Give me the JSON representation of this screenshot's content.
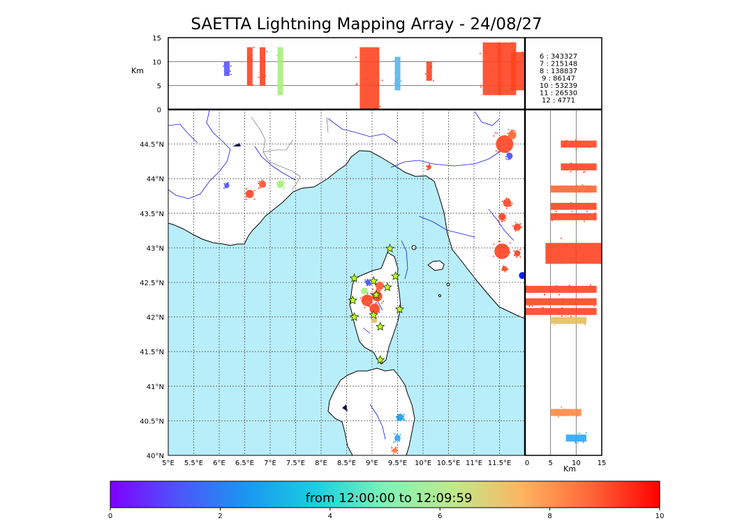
{
  "title": "SAETTA Lightning Mapping Array - 24/08/27",
  "alt_panel": {
    "unit_label": "Km",
    "y_ticks": [
      "15",
      "10",
      "5",
      "0"
    ],
    "y_values": [
      15,
      10,
      5,
      0
    ]
  },
  "side_panel": {
    "unit_label": "Km",
    "x_ticks": [
      "0",
      "5",
      "10",
      "15"
    ],
    "x_values": [
      0,
      5,
      10,
      15
    ]
  },
  "map": {
    "lon_range": [
      5,
      12
    ],
    "lat_range": [
      40,
      45
    ],
    "lon_ticks": [
      "5°E",
      "5.5°E",
      "6°E",
      "6.5°E",
      "7°E",
      "7.5°E",
      "8°E",
      "8.5°E",
      "9°E",
      "9.5°E",
      "10°E",
      "10.5°E",
      "11°E",
      "11.5°E"
    ],
    "lon_values": [
      5,
      5.5,
      6,
      6.5,
      7,
      7.5,
      8,
      8.5,
      9,
      9.5,
      10,
      10.5,
      11,
      11.5
    ],
    "lat_ticks": [
      "44.5°N",
      "44°N",
      "43.5°N",
      "43°N",
      "42.5°N",
      "42°N",
      "41.5°N",
      "41°N",
      "40.5°N",
      "40°N"
    ],
    "lat_values": [
      44.5,
      44,
      43.5,
      43,
      42.5,
      42,
      41.5,
      41,
      40.5,
      40
    ],
    "stations": [
      {
        "lon": 9.35,
        "lat": 42.99
      },
      {
        "lon": 8.65,
        "lat": 42.56
      },
      {
        "lon": 9.03,
        "lat": 42.52
      },
      {
        "lon": 9.46,
        "lat": 42.59
      },
      {
        "lon": 9.3,
        "lat": 42.43
      },
      {
        "lon": 9.08,
        "lat": 42.32
      },
      {
        "lon": 8.62,
        "lat": 42.24
      },
      {
        "lon": 9.54,
        "lat": 42.11
      },
      {
        "lon": 8.65,
        "lat": 42.0
      },
      {
        "lon": 9.03,
        "lat": 42.03
      },
      {
        "lon": 9.16,
        "lat": 41.86
      },
      {
        "lon": 9.16,
        "lat": 41.38
      }
    ],
    "cells": [
      {
        "lon": 6.15,
        "lat": 43.9,
        "r": 0.05,
        "color": "#5b57ff"
      },
      {
        "lon": 6.6,
        "lat": 43.78,
        "r": 0.08,
        "color": "#ff4422"
      },
      {
        "lon": 6.85,
        "lat": 43.92,
        "r": 0.07,
        "color": "#ff5533"
      },
      {
        "lon": 7.2,
        "lat": 43.92,
        "r": 0.07,
        "color": "#a6ef7a"
      },
      {
        "lon": 10.12,
        "lat": 44.17,
        "r": 0.04,
        "color": "#ff4422"
      },
      {
        "lon": 11.6,
        "lat": 44.5,
        "r": 0.17,
        "color": "#ff4422"
      },
      {
        "lon": 11.75,
        "lat": 44.63,
        "r": 0.08,
        "color": "#ff6633"
      },
      {
        "lon": 11.7,
        "lat": 44.33,
        "r": 0.06,
        "color": "#4a50ff"
      },
      {
        "lon": 11.55,
        "lat": 43.45,
        "r": 0.07,
        "color": "#ff4422"
      },
      {
        "lon": 11.65,
        "lat": 43.65,
        "r": 0.08,
        "color": "#ff4422"
      },
      {
        "lon": 11.85,
        "lat": 43.3,
        "r": 0.07,
        "color": "#ff4422"
      },
      {
        "lon": 11.55,
        "lat": 42.95,
        "r": 0.15,
        "color": "#ff4422"
      },
      {
        "lon": 11.85,
        "lat": 42.92,
        "r": 0.06,
        "color": "#ff4422"
      },
      {
        "lon": 11.6,
        "lat": 42.7,
        "r": 0.05,
        "color": "#ff4422"
      },
      {
        "lon": 8.92,
        "lat": 42.5,
        "r": 0.05,
        "color": "#4a50ff"
      },
      {
        "lon": 8.9,
        "lat": 42.24,
        "r": 0.11,
        "color": "#ff4422"
      },
      {
        "lon": 9.1,
        "lat": 42.3,
        "r": 0.1,
        "color": "#ff4422"
      },
      {
        "lon": 9.05,
        "lat": 42.12,
        "r": 0.1,
        "color": "#ff4422"
      },
      {
        "lon": 9.15,
        "lat": 42.45,
        "r": 0.08,
        "color": "#ff5533"
      },
      {
        "lon": 8.85,
        "lat": 42.38,
        "r": 0.06,
        "color": "#a6ef7a"
      },
      {
        "lon": 9.05,
        "lat": 41.95,
        "r": 0.05,
        "color": "#e6c060"
      },
      {
        "lon": 9.55,
        "lat": 40.55,
        "r": 0.07,
        "color": "#1a9fe8"
      },
      {
        "lon": 9.5,
        "lat": 40.25,
        "r": 0.06,
        "color": "#2ca5ff"
      },
      {
        "lon": 9.45,
        "lat": 40.07,
        "r": 0.05,
        "color": "#ff7744"
      }
    ],
    "flash_marker": {
      "lon": 11.95,
      "lat": 42.6,
      "color": "#0a20ff"
    }
  },
  "alt_cells": [
    {
      "lon": 6.15,
      "zlo": 7,
      "zhi": 10,
      "color": "#5b57ff"
    },
    {
      "lon": 6.6,
      "zlo": 5,
      "zhi": 13,
      "color": "#ff4422"
    },
    {
      "lon": 6.85,
      "zlo": 5,
      "zhi": 13,
      "color": "#ff4422"
    },
    {
      "lon": 7.2,
      "zlo": 3,
      "zhi": 13,
      "color": "#a6ef7a"
    },
    {
      "lon": 8.95,
      "zlo": 0,
      "zhi": 13,
      "color": "#ff4422"
    },
    {
      "lon": 9.5,
      "zlo": 4,
      "zhi": 11,
      "color": "#55b5ee"
    },
    {
      "lon": 10.12,
      "zlo": 6,
      "zhi": 10,
      "color": "#ff4422"
    },
    {
      "lon": 11.35,
      "zlo": 3,
      "zhi": 14,
      "color": "#ff4422"
    },
    {
      "lon": 11.65,
      "zlo": 3,
      "zhi": 14,
      "color": "#ff4422"
    },
    {
      "lon": 11.9,
      "zlo": 4,
      "zhi": 12,
      "color": "#ff4422"
    }
  ],
  "side_cells": [
    {
      "lat": 44.5,
      "zlo": 7,
      "zhi": 14,
      "color": "#ff4422"
    },
    {
      "lat": 44.17,
      "zlo": 7,
      "zhi": 14,
      "color": "#ff4422"
    },
    {
      "lat": 43.85,
      "zlo": 5,
      "zhi": 14,
      "color": "#ff6633"
    },
    {
      "lat": 43.6,
      "zlo": 5,
      "zhi": 14,
      "color": "#ff4422"
    },
    {
      "lat": 43.45,
      "zlo": 5,
      "zhi": 14,
      "color": "#ff4422"
    },
    {
      "lat": 42.92,
      "zlo": 4,
      "zhi": 15,
      "color": "#ff4422"
    },
    {
      "lat": 42.4,
      "zlo": 0,
      "zhi": 14,
      "color": "#ff4422"
    },
    {
      "lat": 42.22,
      "zlo": 0,
      "zhi": 14,
      "color": "#ff4422"
    },
    {
      "lat": 42.08,
      "zlo": 0,
      "zhi": 14,
      "color": "#ff4422"
    },
    {
      "lat": 41.95,
      "zlo": 5,
      "zhi": 12,
      "color": "#e6c060"
    },
    {
      "lat": 40.62,
      "zlo": 5,
      "zhi": 11,
      "color": "#ff8844"
    },
    {
      "lat": 40.25,
      "zlo": 8,
      "zhi": 12,
      "color": "#2ca5ff"
    }
  ],
  "counts": [
    {
      "label": "6 :   343327",
      "color": "#000000"
    },
    {
      "label": "7 :   215148",
      "color": "#ff0000"
    },
    {
      "label": "8 :   138837",
      "color": "#000000"
    },
    {
      "label": "9 :     86147",
      "color": "#000000"
    },
    {
      "label": "10 :     53239",
      "color": "#000000"
    },
    {
      "label": "11 :     26530",
      "color": "#000000"
    },
    {
      "label": "12 :       4771",
      "color": "#000000"
    }
  ],
  "colorbar": {
    "label": "from 12:00:00 to 12:09:59",
    "ticks": [
      "0",
      "2",
      "4",
      "6",
      "8",
      "10"
    ],
    "values": [
      0,
      2,
      4,
      6,
      8,
      10
    ],
    "colors": [
      "#7f00ff",
      "#4c56fa",
      "#1998f0",
      "#19cfe0",
      "#7ff3b6",
      "#bfea8a",
      "#ffb460",
      "#ff6638",
      "#ff0000"
    ]
  },
  "colors": {
    "sea": "#b8eefa",
    "land": "#ffffff",
    "coast": "#000000",
    "rivers": "#1515e6",
    "borders": "#555555",
    "grid": "#555555"
  }
}
